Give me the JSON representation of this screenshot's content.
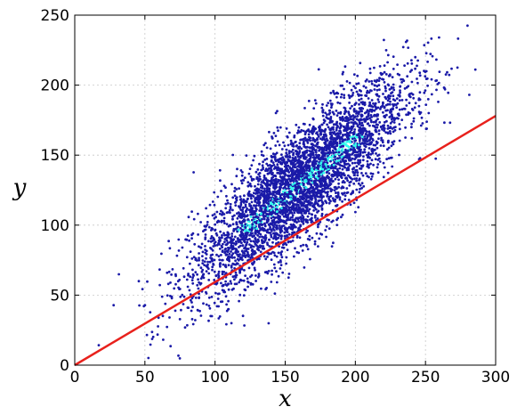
{
  "chart_data": {
    "type": "scatter",
    "title": "",
    "xlabel": "x",
    "ylabel": "y",
    "xlim": [
      0,
      300
    ],
    "ylim": [
      0,
      250
    ],
    "xticks": [
      0,
      50,
      100,
      150,
      200,
      250,
      300
    ],
    "yticks": [
      0,
      50,
      100,
      150,
      200,
      250
    ],
    "grid": true,
    "legend": "none",
    "colors": {
      "points_low_density": "#1a1aa8",
      "points_high_density": "#33ffee",
      "line": "#e8211c",
      "grid": "#c8c8c8"
    },
    "scatter": {
      "count": 4200,
      "center": [
        160,
        128
      ],
      "trend_slope": 0.82,
      "trend_intercept": -3,
      "x_spread_sd": 38,
      "y_residual_sd": 20,
      "x_range": [
        0,
        295
      ],
      "y_range": [
        0,
        243
      ],
      "dense_band": {
        "x": [
          110,
          215
        ],
        "y": [
          95,
          165
        ]
      }
    },
    "series": [
      {
        "type": "line",
        "x": [
          0,
          300
        ],
        "y": [
          0,
          178
        ]
      }
    ]
  }
}
